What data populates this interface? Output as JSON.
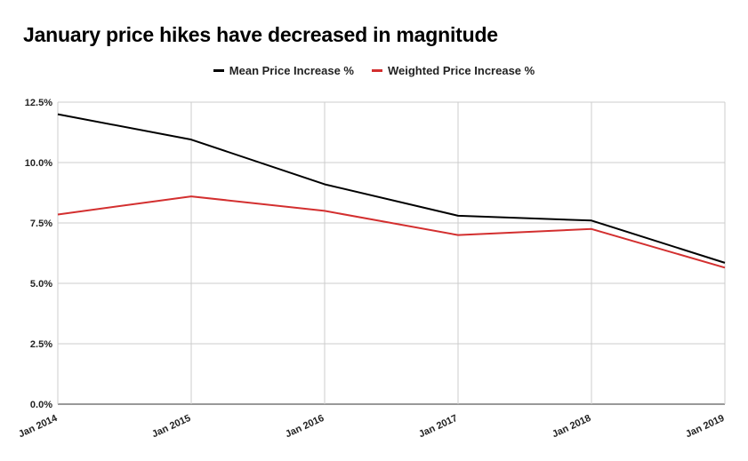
{
  "chart_data": {
    "type": "line",
    "title": "January price hikes have decreased in magnitude",
    "xlabel": "",
    "ylabel": "",
    "categories": [
      "Jan 2014",
      "Jan 2015",
      "Jan 2016",
      "Jan 2017",
      "Jan 2018",
      "Jan 2019"
    ],
    "ylim": [
      0,
      12.5
    ],
    "yticks": [
      "0.0%",
      "2.5%",
      "5.0%",
      "7.5%",
      "10.0%",
      "12.5%"
    ],
    "grid": true,
    "legend_position": "top-center",
    "series": [
      {
        "name": "Mean Price Increase %",
        "color": "#000000",
        "values": [
          12.0,
          10.95,
          9.1,
          7.8,
          7.6,
          5.85
        ]
      },
      {
        "name": "Weighted Price Increase %",
        "color": "#d32f2f",
        "values": [
          7.85,
          8.6,
          8.0,
          7.0,
          7.25,
          5.65
        ]
      }
    ]
  }
}
